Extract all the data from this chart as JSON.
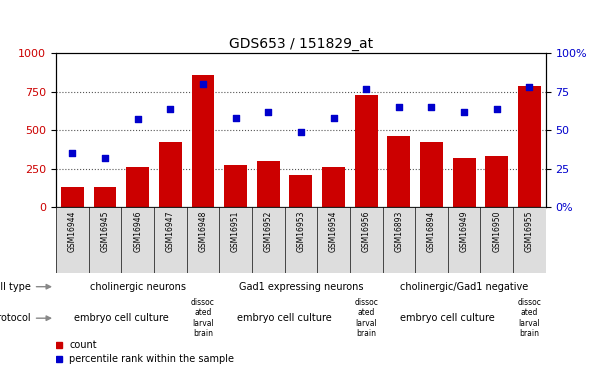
{
  "title": "GDS653 / 151829_at",
  "samples": [
    "GSM16944",
    "GSM16945",
    "GSM16946",
    "GSM16947",
    "GSM16948",
    "GSM16951",
    "GSM16952",
    "GSM16953",
    "GSM16954",
    "GSM16956",
    "GSM16893",
    "GSM16894",
    "GSM16949",
    "GSM16950",
    "GSM16955"
  ],
  "counts": [
    130,
    130,
    260,
    420,
    860,
    270,
    300,
    210,
    260,
    730,
    460,
    420,
    320,
    330,
    790
  ],
  "percentiles": [
    35,
    32,
    57,
    64,
    80,
    58,
    62,
    49,
    58,
    77,
    65,
    65,
    62,
    64,
    78
  ],
  "ylim_left": [
    0,
    1000
  ],
  "ylim_right": [
    0,
    100
  ],
  "yticks_left": [
    0,
    250,
    500,
    750,
    1000
  ],
  "bar_color": "#cc0000",
  "dot_color": "#0000cc",
  "cell_type_groups": [
    {
      "label": "cholinergic neurons",
      "start": 0,
      "end": 5,
      "color": "#ccffcc"
    },
    {
      "label": "Gad1 expressing neurons",
      "start": 5,
      "end": 10,
      "color": "#66dd66"
    },
    {
      "label": "cholinergic/Gad1 negative",
      "start": 10,
      "end": 15,
      "color": "#44cc44"
    }
  ],
  "protocol_groups": [
    {
      "label": "embryo cell culture",
      "start": 0,
      "end": 4,
      "color": "#ee88ee"
    },
    {
      "label": "dissoc\nated\nlarval\nbrain",
      "start": 4,
      "end": 5,
      "color": "#dd66dd"
    },
    {
      "label": "embryo cell culture",
      "start": 5,
      "end": 9,
      "color": "#ee88ee"
    },
    {
      "label": "dissoc\nated\nlarval\nbrain",
      "start": 9,
      "end": 10,
      "color": "#dd66dd"
    },
    {
      "label": "embryo cell culture",
      "start": 10,
      "end": 14,
      "color": "#ee88ee"
    },
    {
      "label": "dissoc\nated\nlarval\nbrain",
      "start": 14,
      "end": 15,
      "color": "#dd66dd"
    }
  ],
  "grid_color": "#555555",
  "tick_label_color_left": "#cc0000",
  "tick_label_color_right": "#0000cc"
}
